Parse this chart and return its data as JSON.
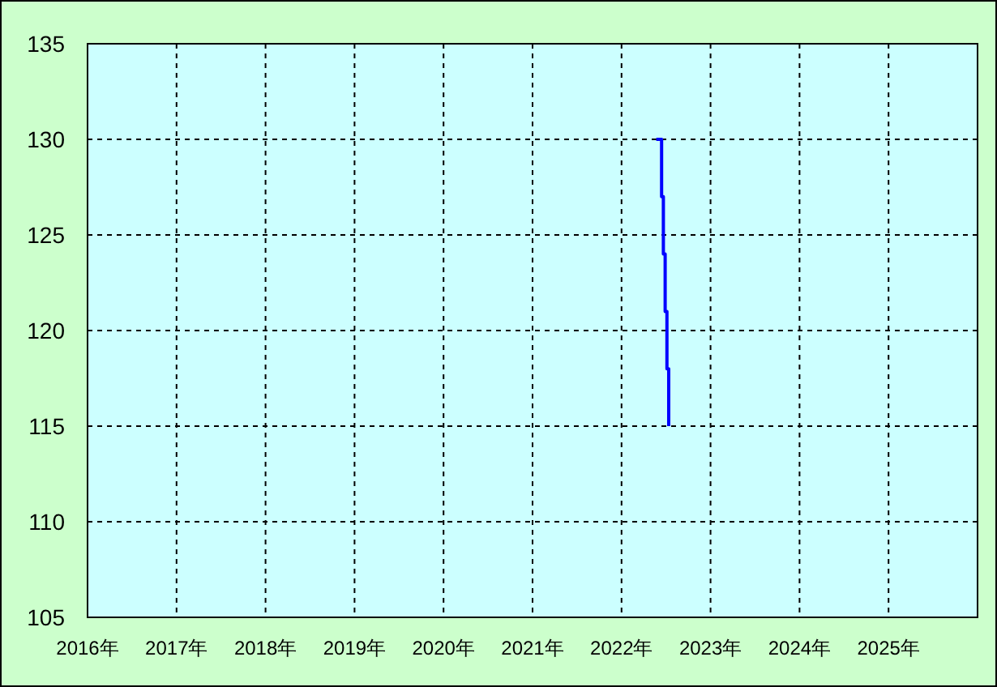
{
  "chart_data": {
    "type": "line",
    "x": [
      2022.39,
      2022.45,
      2022.45,
      2022.47,
      2022.47,
      2022.49,
      2022.49,
      2022.51,
      2022.51,
      2022.53,
      2022.53
    ],
    "series": [
      {
        "color": "#0000ff",
        "values": [
          130,
          130,
          127,
          127,
          124,
          124,
          121,
          121,
          118,
          118,
          115
        ]
      }
    ],
    "xlim": [
      2016,
      2026
    ],
    "xticks": [
      {
        "value": 2016,
        "label": "2016年"
      },
      {
        "value": 2017,
        "label": "2017年"
      },
      {
        "value": 2018,
        "label": "2018年"
      },
      {
        "value": 2019,
        "label": "2019年"
      },
      {
        "value": 2020,
        "label": "2020年"
      },
      {
        "value": 2021,
        "label": "2021年"
      },
      {
        "value": 2022,
        "label": "2022年"
      },
      {
        "value": 2023,
        "label": "2023年"
      },
      {
        "value": 2024,
        "label": "2024年"
      },
      {
        "value": 2025,
        "label": "2025年"
      }
    ],
    "ylim": [
      105,
      135
    ],
    "yticks": [
      105,
      110,
      115,
      120,
      125,
      130,
      135
    ],
    "grid": true,
    "line_style": "solid",
    "marker": "none"
  }
}
